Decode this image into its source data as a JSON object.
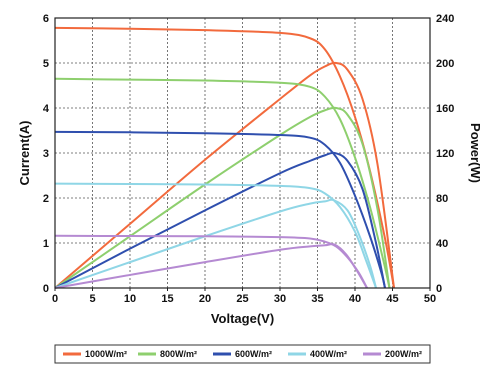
{
  "chart_data": {
    "type": "line",
    "xlabel": "Voltage(V)",
    "ylabel": "Current(A)",
    "y2label": "Power(W)",
    "xlim": [
      0,
      50
    ],
    "ylim": [
      0,
      6
    ],
    "y2lim": [
      0,
      240
    ],
    "x_ticks": [
      "0",
      "5",
      "10",
      "15",
      "20",
      "25",
      "30",
      "35",
      "40",
      "45",
      "50"
    ],
    "y_ticks": [
      "0",
      "1",
      "2",
      "3",
      "4",
      "5",
      "6"
    ],
    "y2_ticks": [
      "0",
      "40",
      "80",
      "120",
      "160",
      "200",
      "240"
    ],
    "grid": true,
    "legend_position": "bottom",
    "series": [
      {
        "name": "1000W/m²",
        "color": "#f26a3d",
        "iv": [
          [
            0,
            5.78
          ],
          [
            10,
            5.76
          ],
          [
            20,
            5.73
          ],
          [
            30,
            5.67
          ],
          [
            34,
            5.55
          ],
          [
            36,
            5.3
          ],
          [
            38,
            4.7
          ],
          [
            40,
            3.8
          ],
          [
            42,
            2.6
          ],
          [
            44,
            1.1
          ],
          [
            45.2,
            0
          ]
        ],
        "pv": [
          [
            0,
            0
          ],
          [
            10,
            57
          ],
          [
            20,
            114
          ],
          [
            30,
            168
          ],
          [
            34,
            189
          ],
          [
            36,
            197
          ],
          [
            37.5,
            200
          ],
          [
            39,
            194
          ],
          [
            41,
            168
          ],
          [
            43,
            110
          ],
          [
            45.2,
            0
          ]
        ]
      },
      {
        "name": "800W/m²",
        "color": "#8ecf6e",
        "iv": [
          [
            0,
            4.65
          ],
          [
            10,
            4.63
          ],
          [
            20,
            4.61
          ],
          [
            30,
            4.56
          ],
          [
            34,
            4.47
          ],
          [
            36,
            4.25
          ],
          [
            38,
            3.75
          ],
          [
            40,
            2.9
          ],
          [
            42,
            1.8
          ],
          [
            43.8,
            0.6
          ],
          [
            44.6,
            0
          ]
        ],
        "pv": [
          [
            0,
            0
          ],
          [
            10,
            46
          ],
          [
            20,
            92
          ],
          [
            30,
            136
          ],
          [
            34,
            152
          ],
          [
            36,
            158
          ],
          [
            37.5,
            160
          ],
          [
            39,
            154
          ],
          [
            41,
            128
          ],
          [
            43,
            70
          ],
          [
            44.6,
            0
          ]
        ]
      },
      {
        "name": "600W/m²",
        "color": "#2f4fae",
        "iv": [
          [
            0,
            3.47
          ],
          [
            10,
            3.46
          ],
          [
            20,
            3.44
          ],
          [
            30,
            3.4
          ],
          [
            34,
            3.34
          ],
          [
            36,
            3.18
          ],
          [
            38,
            2.78
          ],
          [
            40,
            2.05
          ],
          [
            42,
            1.15
          ],
          [
            43.5,
            0.35
          ],
          [
            44,
            0
          ]
        ],
        "pv": [
          [
            0,
            0
          ],
          [
            10,
            35
          ],
          [
            20,
            69
          ],
          [
            30,
            102
          ],
          [
            34,
            113
          ],
          [
            36,
            118
          ],
          [
            37.3,
            120
          ],
          [
            39,
            113
          ],
          [
            41,
            88
          ],
          [
            42.8,
            40
          ],
          [
            44,
            0
          ]
        ]
      },
      {
        "name": "400W/m²",
        "color": "#8fd6e6",
        "iv": [
          [
            0,
            2.32
          ],
          [
            10,
            2.31
          ],
          [
            20,
            2.3
          ],
          [
            30,
            2.27
          ],
          [
            34,
            2.22
          ],
          [
            36,
            2.1
          ],
          [
            38,
            1.8
          ],
          [
            40,
            1.25
          ],
          [
            41.5,
            0.6
          ],
          [
            42.8,
            0
          ]
        ],
        "pv": [
          [
            0,
            0
          ],
          [
            10,
            23
          ],
          [
            20,
            46
          ],
          [
            30,
            68
          ],
          [
            34,
            75
          ],
          [
            36,
            77
          ],
          [
            37.2,
            78
          ],
          [
            39,
            69
          ],
          [
            40.5,
            48
          ],
          [
            42,
            20
          ],
          [
            42.8,
            0
          ]
        ]
      },
      {
        "name": "200W/m²",
        "color": "#b58ad2",
        "iv": [
          [
            0,
            1.16
          ],
          [
            10,
            1.155
          ],
          [
            20,
            1.15
          ],
          [
            30,
            1.13
          ],
          [
            34,
            1.1
          ],
          [
            36,
            1.03
          ],
          [
            37.5,
            0.92
          ],
          [
            39,
            0.68
          ],
          [
            40.5,
            0.34
          ],
          [
            41.6,
            0
          ]
        ],
        "pv": [
          [
            0,
            0
          ],
          [
            10,
            11.6
          ],
          [
            20,
            23
          ],
          [
            30,
            34
          ],
          [
            34,
            37
          ],
          [
            36,
            38
          ],
          [
            37.3,
            38.5
          ],
          [
            38.8,
            30
          ],
          [
            40.2,
            16
          ],
          [
            41.6,
            0
          ]
        ]
      }
    ]
  }
}
